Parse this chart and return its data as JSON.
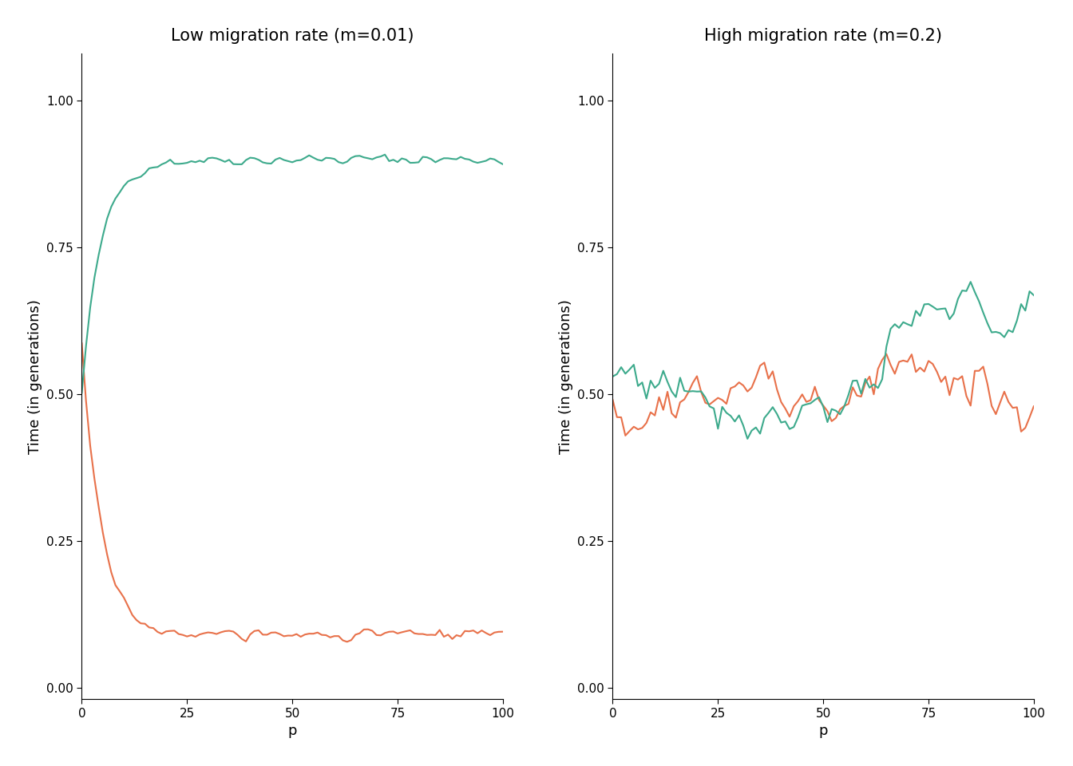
{
  "title_left": "Low migration rate (m=0.01)",
  "title_right": "High migration rate (m=0.2)",
  "xlabel": "p",
  "ylabel": "Time (in generations)",
  "color_orange": "#E8714A",
  "color_teal": "#3DAA8C",
  "ylim": [
    -0.02,
    1.08
  ],
  "yticks": [
    0.0,
    0.25,
    0.5,
    0.75,
    1.0
  ],
  "xticks": [
    0,
    25,
    50,
    75,
    100
  ],
  "background_color": "#ffffff",
  "title_fontsize": 15,
  "label_fontsize": 13,
  "tick_fontsize": 11,
  "linewidth": 1.5,
  "figsize": [
    13.44,
    9.6
  ],
  "dpi": 100
}
